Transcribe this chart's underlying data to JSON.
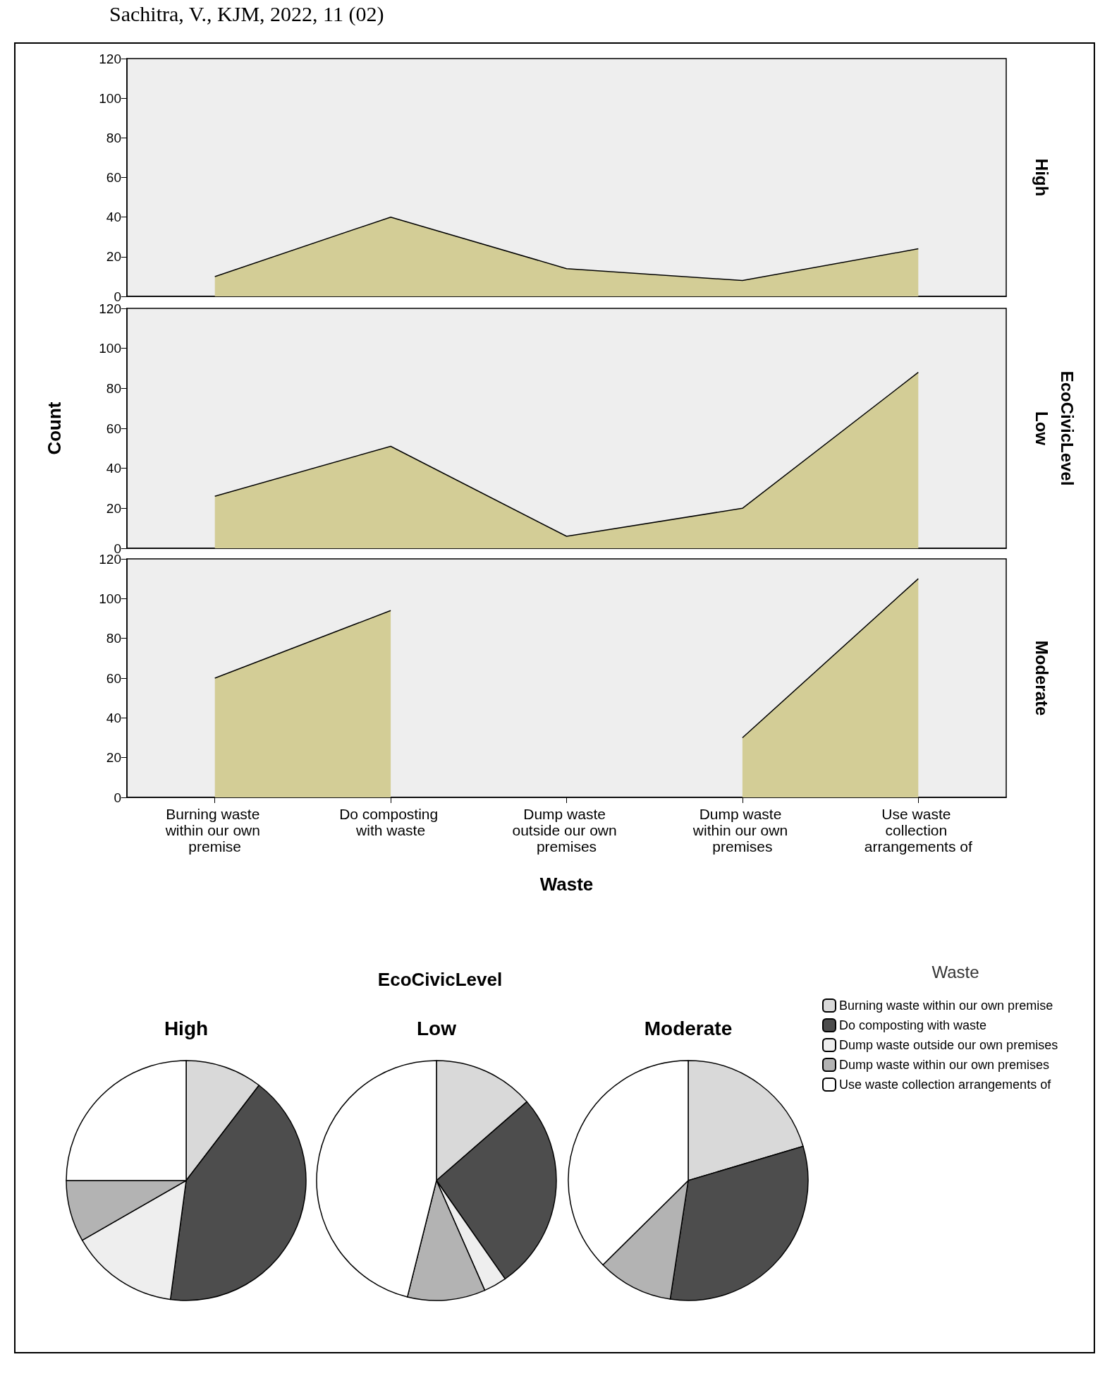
{
  "chart_data": [
    {
      "type": "area",
      "y2label": "High",
      "annotations": [
        "Sachitra, V., KJM, 2022, 11 (02)"
      ],
      "categories": [
        "Burning waste within our own premise",
        "Do composting with waste",
        "Dump waste outside our own premises",
        "Dump waste within our own premises",
        "Use waste collection arrangements of"
      ],
      "series": [
        {
          "color": "#d3cd96",
          "values": [
            10,
            40,
            14,
            8,
            24
          ]
        }
      ],
      "ylim": [
        0,
        120
      ],
      "yticks": [
        0,
        20,
        40,
        60,
        80,
        100,
        120
      ],
      "grid": false,
      "legend": false,
      "marker": "none",
      "line_style": "solid",
      "tick_labels": "y"
    },
    {
      "type": "area",
      "y2label": "Low",
      "ylabel": "Count",
      "annotations": [
        "EcoCivicLevel"
      ],
      "categories": [
        "Burning waste within our own premise",
        "Do composting with waste",
        "Dump waste outside our own premises",
        "Dump waste within our own premises",
        "Use waste collection arrangements of"
      ],
      "series": [
        {
          "color": "#d3cd96",
          "values": [
            26,
            51,
            6,
            20,
            88
          ]
        }
      ],
      "ylim": [
        0,
        120
      ],
      "yticks": [
        0,
        20,
        40,
        60,
        80,
        100,
        120
      ],
      "grid": false,
      "legend": false,
      "marker": "none",
      "line_style": "solid",
      "tick_labels": "y"
    },
    {
      "type": "area",
      "y2label": "Moderate",
      "xlabel": "Waste",
      "categories": [
        "Burning waste within our own premise",
        "Do composting with waste",
        "Dump waste outside our own premises",
        "Dump waste within our own premises",
        "Use waste collection arrangements of"
      ],
      "series": [
        {
          "color": "#d3cd96",
          "values": [
            60,
            94,
            null,
            30,
            110
          ]
        }
      ],
      "ylim": [
        0,
        120
      ],
      "yticks": [
        0,
        20,
        40,
        60,
        80,
        100,
        120
      ],
      "grid": false,
      "legend": false,
      "marker": "none",
      "line_style": "solid"
    },
    {
      "type": "pie",
      "title": "EcoCivicLevel",
      "legend_title": "Waste",
      "categories": [
        "Burning waste within our own premise",
        "Do composting with waste",
        "Dump waste outside our own premises",
        "Dump waste within our own premises",
        "Use waste collection arrangements of"
      ],
      "colors": [
        "#d9d9d9",
        "#4d4d4d",
        "#eeeeee",
        "#b3b3b3",
        "#ffffff"
      ],
      "series": [
        {
          "name": "High",
          "values": [
            10.4,
            41.7,
            14.6,
            8.3,
            25.0
          ]
        },
        {
          "name": "Low",
          "values": [
            13.6,
            26.7,
            3.1,
            10.5,
            46.1
          ]
        },
        {
          "name": "Moderate",
          "values": [
            20.4,
            32.0,
            0,
            10.2,
            37.4
          ]
        }
      ],
      "legend": "right"
    }
  ]
}
